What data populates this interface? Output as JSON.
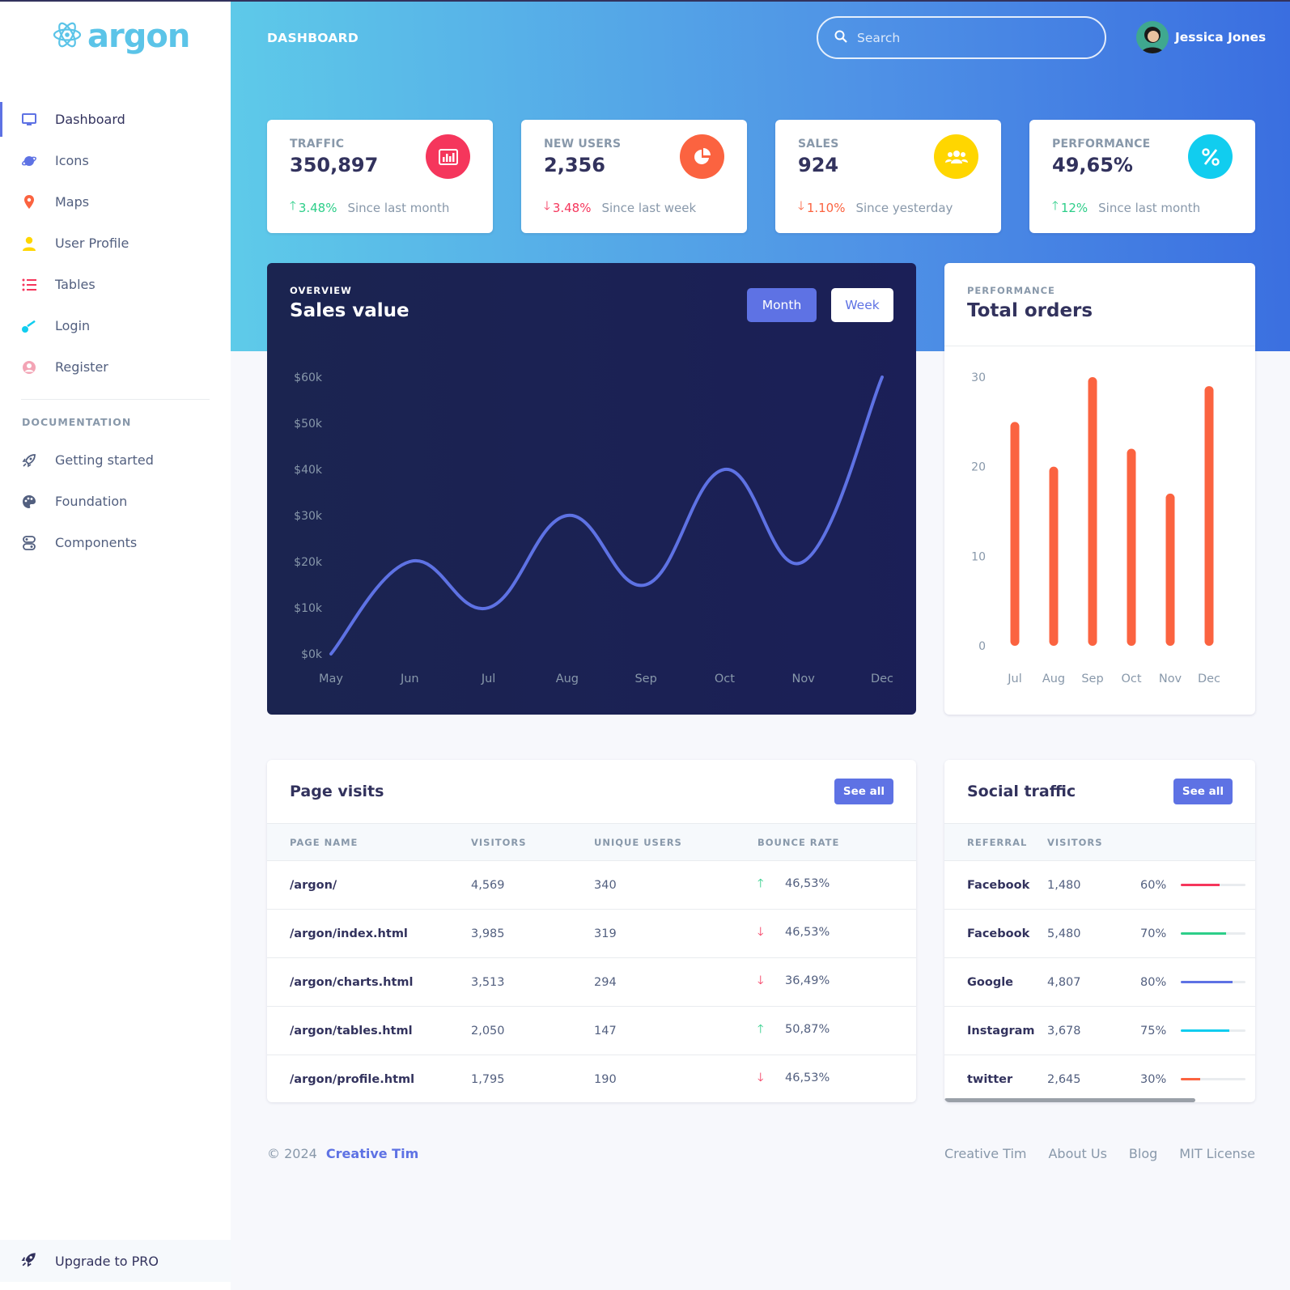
{
  "brand": {
    "name": "argon",
    "color": "#5bc4e8"
  },
  "sidebar": {
    "items": [
      {
        "label": "Dashboard",
        "icon": "monitor-icon",
        "active": true
      },
      {
        "label": "Icons",
        "icon": "planet-icon"
      },
      {
        "label": "Maps",
        "icon": "map-pin-icon"
      },
      {
        "label": "User Profile",
        "icon": "user-icon"
      },
      {
        "label": "Tables",
        "icon": "list-icon"
      },
      {
        "label": "Login",
        "icon": "key-icon"
      },
      {
        "label": "Register",
        "icon": "circle-user-icon"
      }
    ],
    "doc_heading": "DOCUMENTATION",
    "doc_items": [
      {
        "label": "Getting started",
        "icon": "rocket-icon"
      },
      {
        "label": "Foundation",
        "icon": "palette-icon"
      },
      {
        "label": "Components",
        "icon": "components-icon"
      }
    ],
    "upgrade_label": "Upgrade to PRO"
  },
  "header": {
    "title": "DASHBOARD",
    "search_placeholder": "Search",
    "user_name": "Jessica Jones"
  },
  "stats": [
    {
      "title": "TRAFFIC",
      "value": "350,897",
      "change": "3.48%",
      "direction": "up",
      "since": "Since last month",
      "icon": "chart-bar-icon",
      "color": "#f5365c"
    },
    {
      "title": "NEW USERS",
      "value": "2,356",
      "change": "3.48%",
      "direction": "down",
      "since": "Since last week",
      "icon": "chart-pie-icon",
      "color": "#fb6340"
    },
    {
      "title": "SALES",
      "value": "924",
      "change": "1.10%",
      "direction": "down",
      "since": "Since yesterday",
      "icon": "users-icon",
      "color": "#ffd600"
    },
    {
      "title": "PERFORMANCE",
      "value": "49,65%",
      "change": "12%",
      "direction": "up",
      "since": "Since last month",
      "icon": "percent-icon",
      "color": "#11cdef"
    }
  ],
  "sales_card": {
    "overline": "OVERVIEW",
    "title": "Sales value",
    "btn_month": "Month",
    "btn_week": "Week"
  },
  "orders_card": {
    "overline": "PERFORMANCE",
    "title": "Total orders"
  },
  "chart_data": [
    {
      "type": "line",
      "categories": [
        "May",
        "Jun",
        "Jul",
        "Aug",
        "Sep",
        "Oct",
        "Nov",
        "Dec"
      ],
      "values": [
        0,
        20,
        10,
        30,
        15,
        40,
        20,
        60
      ],
      "yticks": [
        "$0k",
        "$10k",
        "$20k",
        "$30k",
        "$40k",
        "$50k",
        "$60k"
      ],
      "ylim": [
        0,
        60
      ],
      "color": "#5e72e4"
    },
    {
      "type": "bar",
      "categories": [
        "Jul",
        "Aug",
        "Sep",
        "Oct",
        "Nov",
        "Dec"
      ],
      "values": [
        25,
        20,
        30,
        22,
        17,
        29
      ],
      "yticks": [
        "0",
        "10",
        "20",
        "30"
      ],
      "ylim": [
        0,
        30
      ],
      "color": "#fb6340"
    }
  ],
  "page_visits": {
    "title": "Page visits",
    "see_all": "See all",
    "columns": [
      "PAGE NAME",
      "VISITORS",
      "UNIQUE USERS",
      "BOUNCE RATE"
    ],
    "rows": [
      {
        "page": "/argon/",
        "visitors": "4,569",
        "unique": "340",
        "dir": "up",
        "bounce": "46,53%"
      },
      {
        "page": "/argon/index.html",
        "visitors": "3,985",
        "unique": "319",
        "dir": "down",
        "bounce": "46,53%"
      },
      {
        "page": "/argon/charts.html",
        "visitors": "3,513",
        "unique": "294",
        "dir": "down",
        "bounce": "36,49%"
      },
      {
        "page": "/argon/tables.html",
        "visitors": "2,050",
        "unique": "147",
        "dir": "up",
        "bounce": "50,87%"
      },
      {
        "page": "/argon/profile.html",
        "visitors": "1,795",
        "unique": "190",
        "dir": "down",
        "bounce": "46,53%"
      }
    ]
  },
  "social_traffic": {
    "title": "Social traffic",
    "see_all": "See all",
    "columns": [
      "REFERRAL",
      "VISITORS",
      ""
    ],
    "rows": [
      {
        "referral": "Facebook",
        "visitors": "1,480",
        "pct": "60%",
        "value": 60,
        "color": "#f5365c"
      },
      {
        "referral": "Facebook",
        "visitors": "5,480",
        "pct": "70%",
        "value": 70,
        "color": "#2dce89"
      },
      {
        "referral": "Google",
        "visitors": "4,807",
        "pct": "80%",
        "value": 80,
        "color": "#5e72e4"
      },
      {
        "referral": "Instagram",
        "visitors": "3,678",
        "pct": "75%",
        "value": 75,
        "color": "#11cdef"
      },
      {
        "referral": "twitter",
        "visitors": "2,645",
        "pct": "30%",
        "value": 30,
        "color": "#fb6340"
      }
    ]
  },
  "footer": {
    "copyright": "© 2024",
    "brand_link": "Creative Tim",
    "links": [
      "Creative Tim",
      "About Us",
      "Blog",
      "MIT License"
    ]
  }
}
